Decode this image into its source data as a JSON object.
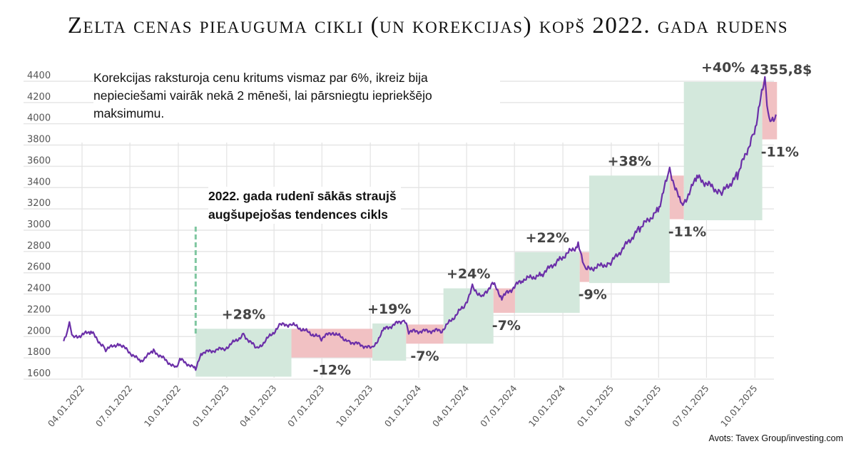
{
  "chart_data": {
    "type": "line",
    "title": "Zelta cenas pieauguma cikli (un korekcijas) kopš 2022. gada rudens",
    "xlabel": "",
    "ylabel": "",
    "ylim": [
      1600,
      4400
    ],
    "yticks": [
      1600,
      1800,
      2000,
      2200,
      2400,
      2600,
      2800,
      3000,
      3200,
      3400,
      3600,
      3800,
      4000,
      4200,
      4400
    ],
    "xticks": [
      "04.01.2022",
      "07.01.2022",
      "10.01.2022",
      "01.01.2023",
      "04.01.2023",
      "07.01.2023",
      "10.01.2023",
      "01.01.2024",
      "04.01.2024",
      "07.01.2024",
      "10.01.2024",
      "01.01.2025",
      "04.01.2025",
      "07.01.2025",
      "10.01.2025"
    ],
    "grid": true,
    "line_color": "#6b2fa8",
    "series": [
      {
        "x": [
          "2022-02-25",
          "2022-03-08",
          "2022-03-15",
          "2022-04-18",
          "2022-05-16",
          "2022-06-10",
          "2022-07-21",
          "2022-08-15",
          "2022-09-28",
          "2022-10-04",
          "2022-11-03",
          "2022-11-15",
          "2022-12-30",
          "2023-02-02",
          "2023-02-28",
          "2023-04-13",
          "2023-05-04",
          "2023-06-30",
          "2023-07-20",
          "2023-08-21",
          "2023-10-05",
          "2023-10-27",
          "2023-12-04",
          "2023-12-13",
          "2024-02-14",
          "2024-03-29",
          "2024-04-12",
          "2024-05-01",
          "2024-05-20",
          "2024-06-07",
          "2024-07-17",
          "2024-08-20",
          "2024-09-25",
          "2024-10-30",
          "2024-11-14",
          "2024-12-31",
          "2025-02-24",
          "2025-03-31",
          "2025-04-22",
          "2025-05-15",
          "2025-06-13",
          "2025-07-30",
          "2025-08-29",
          "2025-09-30",
          "2025-10-20",
          "2025-10-28",
          "2025-11-10"
        ],
        "values": [
          1890,
          2050,
          1920,
          1980,
          1810,
          1870,
          1700,
          1800,
          1630,
          1720,
          1630,
          1780,
          1825,
          1950,
          1815,
          2040,
          2050,
          1915,
          1975,
          1890,
          1820,
          2000,
          2090,
          1980,
          1990,
          2230,
          2400,
          2300,
          2440,
          2300,
          2470,
          2510,
          2660,
          2790,
          2560,
          2625,
          2950,
          3120,
          3500,
          3150,
          3430,
          3280,
          3450,
          3860,
          4355.8,
          3950,
          4020
        ]
      }
    ],
    "cycles": [
      {
        "type": "rise",
        "label": "+28%",
        "start": "2022-11-03",
        "end": "2023-05-04",
        "low": 1610,
        "high": 2060
      },
      {
        "type": "correction",
        "label": "-12%",
        "start": "2023-05-04",
        "end": "2023-10-05",
        "low": 1790,
        "high": 2060
      },
      {
        "type": "rise",
        "label": "+19%",
        "start": "2023-10-05",
        "end": "2023-12-08",
        "low": 1760,
        "high": 2110
      },
      {
        "type": "correction",
        "label": "-7%",
        "start": "2023-12-08",
        "end": "2024-02-17",
        "low": 1920,
        "high": 2100
      },
      {
        "type": "rise",
        "label": "+24%",
        "start": "2024-02-17",
        "end": "2024-05-22",
        "low": 1920,
        "high": 2440
      },
      {
        "type": "correction",
        "label": "-7%",
        "start": "2024-05-22",
        "end": "2024-07-02",
        "low": 2210,
        "high": 2440
      },
      {
        "type": "rise",
        "label": "+22%",
        "start": "2024-07-02",
        "end": "2024-11-02",
        "low": 2210,
        "high": 2780
      },
      {
        "type": "correction",
        "label": "-9%",
        "start": "2024-11-02",
        "end": "2024-11-20",
        "low": 2500,
        "high": 2780
      },
      {
        "type": "rise",
        "label": "+38%",
        "start": "2024-11-20",
        "end": "2025-04-22",
        "low": 2490,
        "high": 3500
      },
      {
        "type": "correction",
        "label": "-11%",
        "start": "2025-04-22",
        "end": "2025-05-19",
        "low": 3090,
        "high": 3500
      },
      {
        "type": "rise",
        "label": "+40%",
        "start": "2025-05-19",
        "end": "2025-10-15",
        "low": 3080,
        "high": 4380
      },
      {
        "type": "correction",
        "label": "-11%",
        "start": "2025-10-15",
        "end": "2025-11-12",
        "low": 3840,
        "high": 4380
      }
    ],
    "peak_label": "4355,8$",
    "rise_color": "#d3e8dc",
    "correction_color": "#f1c1c3",
    "marker_color": "#7fc6a0"
  },
  "annotations": {
    "corrections_note": "Korekcijas raksturoja cenu kritums vismaz par 6%, ikreiz bija nepieciešami vairāk nekā 2 mēneši, lai pārsniegtu iepriekšējo maksimumu.",
    "cycle_start_note": "2022. gada rudenī sākās straujš augšupejošas tendences cikls"
  },
  "source": "Avots: Tavex Group/investing.com"
}
